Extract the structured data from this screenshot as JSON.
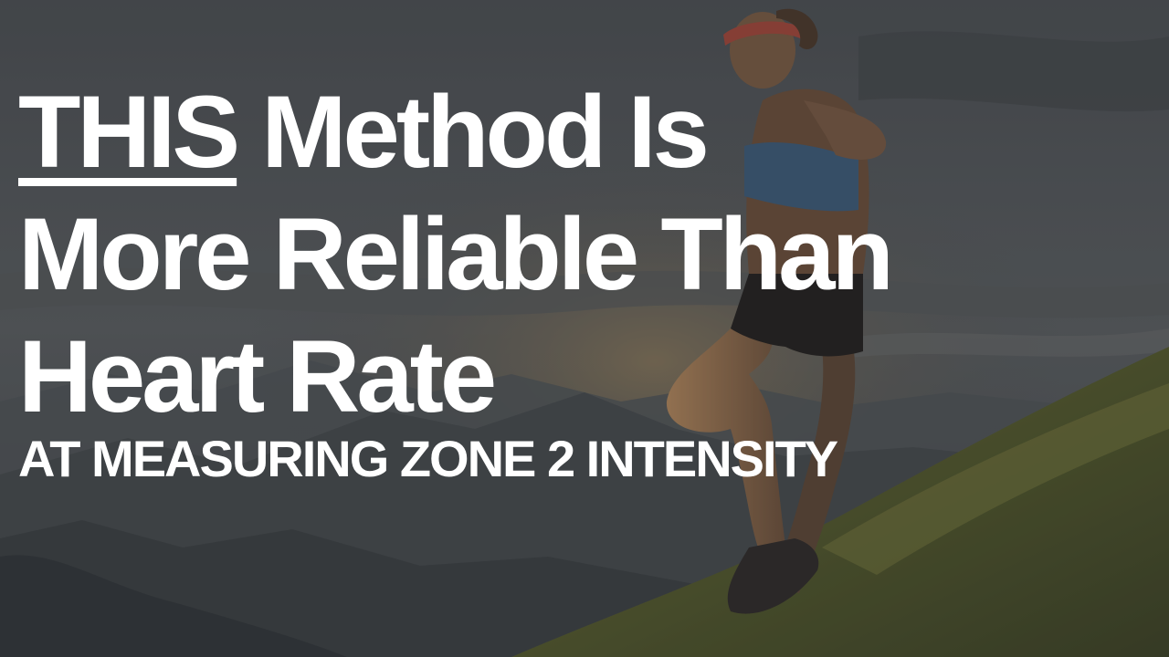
{
  "headline": {
    "emphasis": "THIS",
    "line1_rest": " Method Is",
    "line2": "More Reliable Than",
    "line3": "Heart Rate"
  },
  "subheadline": "AT MEASURING ZONE 2 INTENSITY",
  "colors": {
    "text": "#ffffff",
    "overlay": "#3a3d40",
    "glow": "#e8b060",
    "grass": "#5f6a2e"
  }
}
